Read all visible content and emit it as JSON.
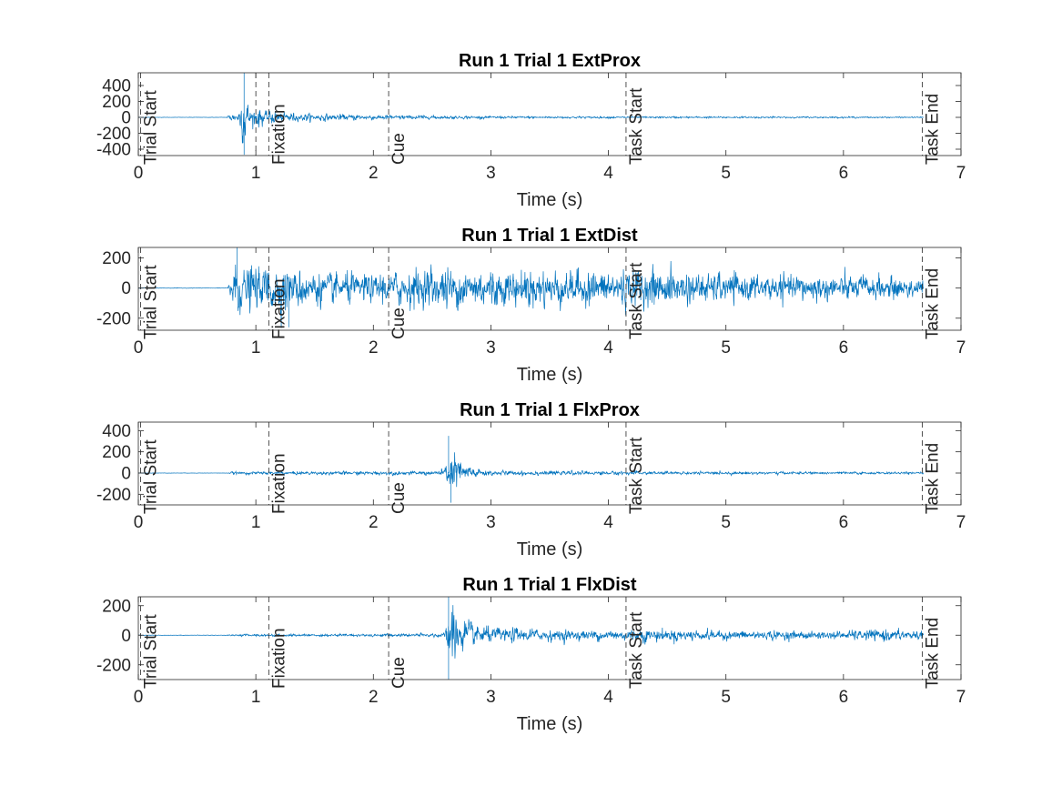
{
  "chart_data": [
    {
      "type": "line",
      "title": "Run 1 Trial 1 ExtProx",
      "xlabel": "Time (s)",
      "ylabel": "",
      "xlim": [
        0,
        7
      ],
      "ylim": [
        -480,
        560
      ],
      "xticks": [
        0,
        1,
        2,
        3,
        4,
        5,
        6,
        7
      ],
      "yticks": [
        -400,
        -200,
        0,
        200,
        400
      ],
      "grid": false,
      "series": [
        {
          "color": "#0072BD",
          "envelope": {
            "x": [
              0,
              0.75,
              0.78,
              0.85,
              0.9,
              0.95,
              1.0,
              1.1,
              1.2,
              1.4,
              1.7,
              2.0,
              2.3,
              2.6,
              3.0,
              3.5,
              4.2,
              5.0,
              6.0,
              6.68
            ],
            "amplitude": [
              3,
              3,
              60,
              110,
              420,
              180,
              150,
              120,
              90,
              60,
              50,
              40,
              35,
              25,
              20,
              18,
              15,
              14,
              12,
              10
            ]
          },
          "peaks": [
            {
              "x": 0.9,
              "y": 560
            },
            {
              "x": 0.9,
              "y": -470
            }
          ]
        }
      ],
      "events": [
        {
          "x": 0.02,
          "label": "Trial Start"
        },
        {
          "x": 1.0,
          "label": ""
        },
        {
          "x": 1.11,
          "label": "Fixation"
        },
        {
          "x": 2.13,
          "label": "Cue"
        },
        {
          "x": 4.15,
          "label": "Task Start"
        },
        {
          "x": 6.67,
          "label": "Task End"
        }
      ]
    },
    {
      "type": "line",
      "title": "Run 1 Trial 1 ExtDist",
      "xlabel": "Time (s)",
      "ylabel": "",
      "xlim": [
        0,
        7
      ],
      "ylim": [
        -280,
        270
      ],
      "xticks": [
        0,
        1,
        2,
        3,
        4,
        5,
        6,
        7
      ],
      "yticks": [
        -200,
        0,
        200
      ],
      "grid": false,
      "series": [
        {
          "color": "#0072BD",
          "envelope": {
            "x": [
              0,
              0.76,
              0.8,
              0.9,
              1.0,
              1.2,
              1.3,
              1.6,
              2.0,
              2.5,
              3.0,
              3.5,
              4.0,
              4.2,
              4.5,
              5.0,
              6.0,
              6.68
            ],
            "amplitude": [
              2,
              2,
              220,
              200,
              180,
              230,
              180,
              130,
              120,
              180,
              170,
              160,
              150,
              170,
              150,
              120,
              110,
              90
            ]
          },
          "peaks": [
            {
              "x": 0.84,
              "y": 270
            },
            {
              "x": 1.28,
              "y": -260
            }
          ]
        }
      ],
      "events": [
        {
          "x": 0.02,
          "label": "Trial Start"
        },
        {
          "x": 1.11,
          "label": "Fixation"
        },
        {
          "x": 2.13,
          "label": "Cue"
        },
        {
          "x": 4.15,
          "label": "Task Start"
        },
        {
          "x": 6.67,
          "label": "Task End"
        }
      ]
    },
    {
      "type": "line",
      "title": "Run 1 Trial 1 FlxProx",
      "xlabel": "Time (s)",
      "ylabel": "",
      "xlim": [
        0,
        7
      ],
      "ylim": [
        -300,
        480
      ],
      "xticks": [
        0,
        1,
        2,
        3,
        4,
        5,
        6,
        7
      ],
      "yticks": [
        -200,
        0,
        200,
        400
      ],
      "grid": false,
      "series": [
        {
          "color": "#0072BD",
          "envelope": {
            "x": [
              0,
              0.75,
              0.8,
              1.0,
              1.5,
              2.0,
              2.5,
              2.6,
              2.66,
              2.75,
              2.85,
              3.0,
              3.5,
              4.2,
              5.0,
              6.0,
              6.68
            ],
            "amplitude": [
              2,
              2,
              15,
              18,
              20,
              22,
              25,
              40,
              280,
              150,
              70,
              30,
              25,
              22,
              18,
              15,
              12
            ]
          },
          "peaks": [
            {
              "x": 2.64,
              "y": 350
            },
            {
              "x": 2.66,
              "y": -280
            }
          ]
        }
      ],
      "events": [
        {
          "x": 0.02,
          "label": "Trial Start"
        },
        {
          "x": 1.11,
          "label": "Fixation"
        },
        {
          "x": 2.13,
          "label": "Cue"
        },
        {
          "x": 4.15,
          "label": "Task Start"
        },
        {
          "x": 6.67,
          "label": "Task End"
        }
      ]
    },
    {
      "type": "line",
      "title": "Run 1 Trial 1 FlxDist",
      "xlabel": "Time (s)",
      "ylabel": "",
      "xlim": [
        0,
        7
      ],
      "ylim": [
        -300,
        260
      ],
      "xticks": [
        0,
        1,
        2,
        3,
        4,
        5,
        6,
        7
      ],
      "yticks": [
        -200,
        0,
        200
      ],
      "grid": false,
      "series": [
        {
          "color": "#0072BD",
          "envelope": {
            "x": [
              0,
              0.75,
              0.8,
              1.0,
              1.5,
              2.0,
              2.5,
              2.6,
              2.66,
              2.8,
              3.0,
              3.5,
              4.0,
              4.3,
              5.0,
              6.0,
              6.3,
              6.68
            ],
            "amplitude": [
              2,
              2,
              8,
              10,
              12,
              12,
              15,
              25,
              260,
              120,
              70,
              50,
              45,
              60,
              40,
              35,
              55,
              40
            ]
          },
          "peaks": [
            {
              "x": 2.64,
              "y": 260
            },
            {
              "x": 2.64,
              "y": -300
            }
          ]
        }
      ],
      "events": [
        {
          "x": 0.02,
          "label": "Trial Start"
        },
        {
          "x": 1.11,
          "label": "Fixation"
        },
        {
          "x": 2.13,
          "label": "Cue"
        },
        {
          "x": 4.15,
          "label": "Task Start"
        },
        {
          "x": 6.67,
          "label": "Task End"
        }
      ]
    }
  ]
}
